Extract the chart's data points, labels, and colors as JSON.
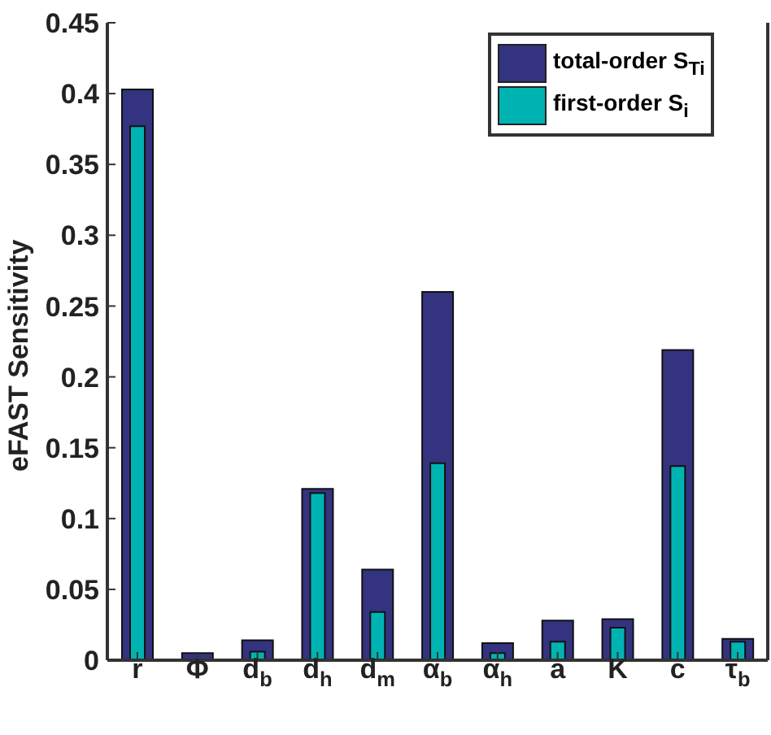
{
  "chart_data": {
    "type": "bar",
    "ylabel": "eFAST Sensitivity",
    "categories": [
      "r",
      "Φ",
      "d$_{b}$",
      "d$_{h}$",
      "d$_{m}$",
      "α$_{b}$",
      "α$_{h}$",
      "a",
      "K",
      "c",
      "τ$_{b}$"
    ],
    "series": [
      {
        "name": "total-order S$_{Ti}$",
        "color": "#333380",
        "values": [
          0.403,
          0.005,
          0.014,
          0.121,
          0.064,
          0.26,
          0.012,
          0.028,
          0.029,
          0.219,
          0.015
        ]
      },
      {
        "name": "first-order S$_{i}$",
        "color": "#00b3b3",
        "values": [
          0.377,
          null,
          0.006,
          0.118,
          0.034,
          0.139,
          0.005,
          0.013,
          0.023,
          0.137,
          0.013
        ]
      }
    ],
    "ylim": [
      0,
      0.45
    ],
    "yticks": [
      0,
      0.05,
      0.1,
      0.15,
      0.2,
      0.25,
      0.3,
      0.35,
      0.4,
      0.45
    ],
    "grid": false,
    "legend": "top right"
  }
}
